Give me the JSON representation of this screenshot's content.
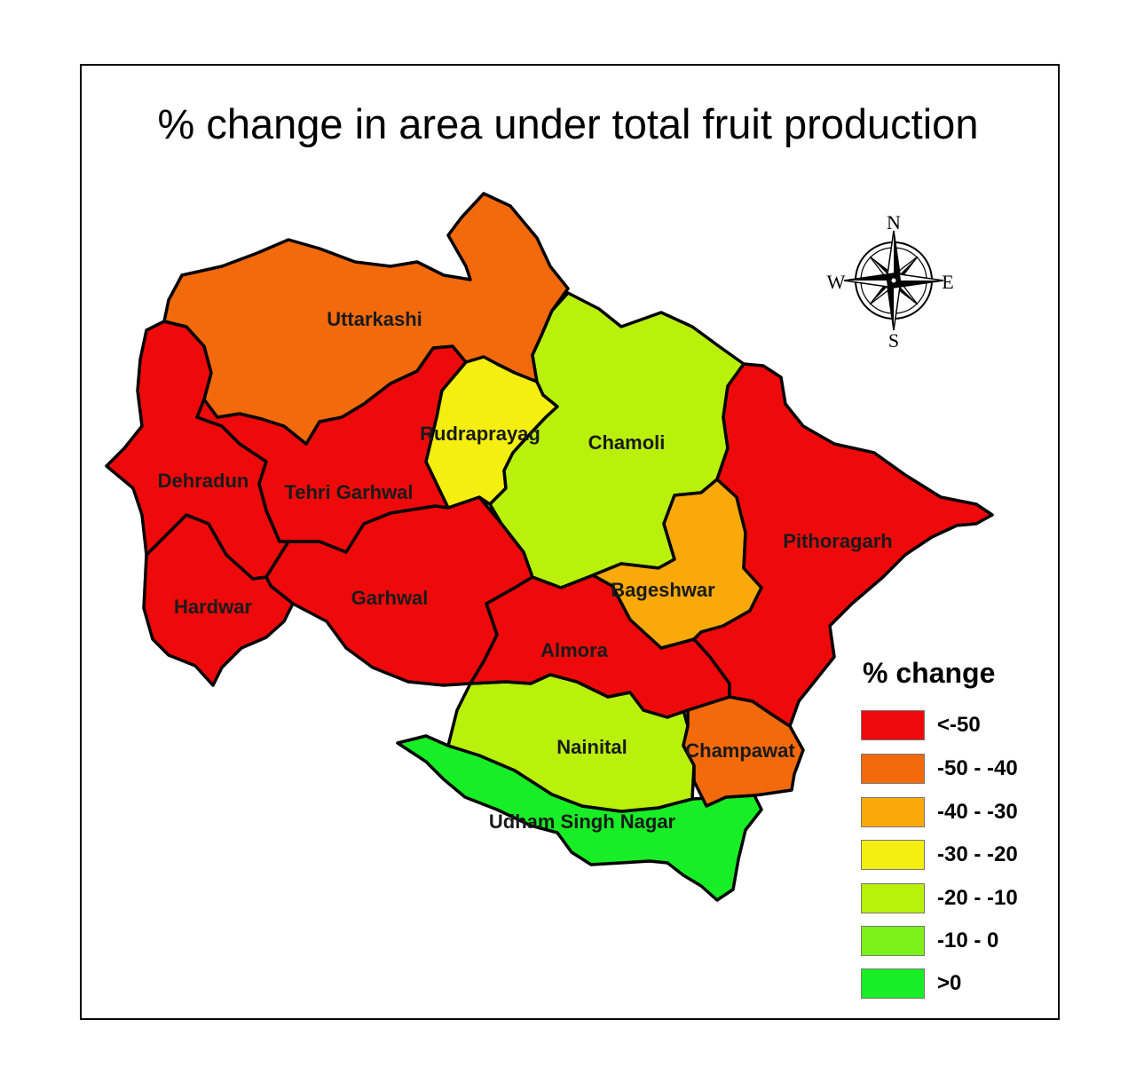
{
  "title": "% change in area under total fruit production",
  "compass": {
    "n": "N",
    "s": "S",
    "e": "E",
    "w": "W"
  },
  "legend": {
    "title": "% change",
    "classes": [
      {
        "label": "<-50",
        "color": "#ee0a0a"
      },
      {
        "label": "-50 - -40",
        "color": "#f26a0c"
      },
      {
        "label": "-40 - -30",
        "color": "#f9a90a"
      },
      {
        "label": "-30 - -20",
        "color": "#f4ef10"
      },
      {
        "label": "-20 - -10",
        "color": "#b9f00c"
      },
      {
        "label": "-10 - 0",
        "color": "#7ef01a"
      },
      {
        "label": ">0",
        "color": "#18ee26"
      }
    ]
  },
  "districts": [
    {
      "name": "Uttarkashi",
      "class": "-50 - -40"
    },
    {
      "name": "Rudraprayag",
      "class": "-30 - -20"
    },
    {
      "name": "Chamoli",
      "class": "-20 - -10"
    },
    {
      "name": "Dehradun",
      "class": "<-50"
    },
    {
      "name": "Tehri Garhwal",
      "class": "<-50"
    },
    {
      "name": "Pithoragarh",
      "class": "<-50"
    },
    {
      "name": "Bageshwar",
      "class": "-40 - -30"
    },
    {
      "name": "Hardwar",
      "class": "<-50"
    },
    {
      "name": "Garhwal",
      "class": "<-50"
    },
    {
      "name": "Almora",
      "class": "<-50"
    },
    {
      "name": "Nainital",
      "class": "-20 - -10"
    },
    {
      "name": "Champawat",
      "class": "-50 - -40"
    },
    {
      "name": "Udham Singh Nagar",
      "class": ">0"
    }
  ]
}
